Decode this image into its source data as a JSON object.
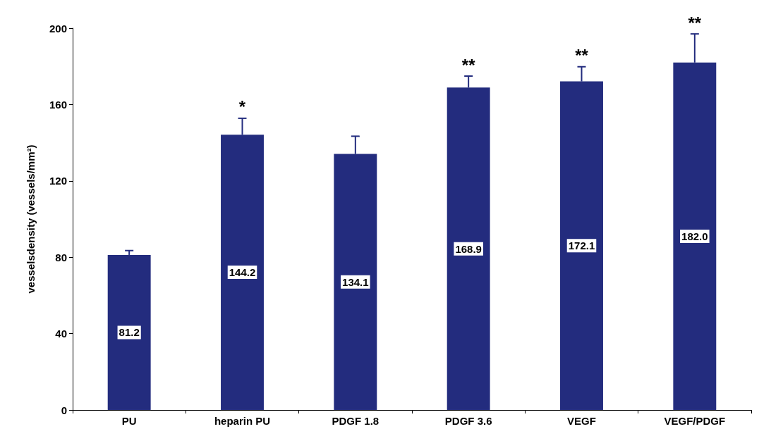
{
  "chart_data": {
    "type": "bar",
    "ylabel": "vesselsdensity (vessels/mm²)",
    "categories": [
      "PU",
      "heparin PU",
      "PDGF 1.8",
      "PDGF 3.6",
      "VEGF",
      "VEGF/PDGF"
    ],
    "values": [
      81.2,
      144.2,
      134.1,
      168.9,
      172.1,
      182.0
    ],
    "errors": [
      2.3,
      8.6,
      9.3,
      6,
      7.7,
      15
    ],
    "color": "#232c7e",
    "value_labels": [
      "81.2",
      "144.2",
      "134.1",
      "168.9",
      "172.1",
      "182.0"
    ],
    "ylim": [
      0,
      200
    ],
    "yticks": [
      0,
      40,
      80,
      120,
      160,
      200
    ],
    "grid": false,
    "annotations": [
      {
        "text": "*",
        "x": "heparin PU",
        "y": 152.8
      },
      {
        "text": "**",
        "x": "PDGF 3.6",
        "y": 174.9
      },
      {
        "text": "**",
        "x": "VEGF",
        "y": 179.8
      },
      {
        "text": "**",
        "x": "VEGF/PDGF",
        "y": 197
      }
    ]
  }
}
